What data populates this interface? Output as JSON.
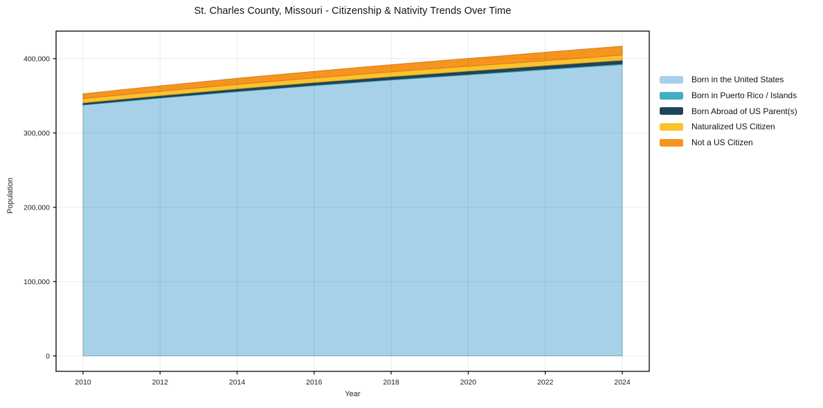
{
  "chart_data": {
    "type": "area",
    "stacked": true,
    "title": "St. Charles County, Missouri - Citizenship & Nativity Trends Over Time",
    "xlabel": "Year",
    "ylabel": "Population",
    "x": [
      2010,
      2011,
      2012,
      2013,
      2014,
      2015,
      2016,
      2017,
      2018,
      2019,
      2020,
      2021,
      2022,
      2023,
      2024
    ],
    "series": [
      {
        "name": "Born in the United States",
        "color": "#a6d1e8",
        "values": [
          337500,
          342200,
          346800,
          351200,
          355500,
          359600,
          363600,
          367400,
          371100,
          374700,
          378100,
          381500,
          385100,
          388600,
          392000
        ]
      },
      {
        "name": "Born in Puerto Rico / Islands",
        "color": "#41aec6",
        "values": [
          750,
          790,
          830,
          870,
          910,
          950,
          990,
          1030,
          1070,
          1110,
          1150,
          1190,
          1230,
          1260,
          1300
        ]
      },
      {
        "name": "Born Abroad of US Parent(s)",
        "color": "#1f4557",
        "values": [
          2300,
          2470,
          2640,
          2800,
          2970,
          3130,
          3300,
          3460,
          3630,
          3790,
          3960,
          4120,
          4290,
          4450,
          4600
        ]
      },
      {
        "name": "Naturalized US Citizen",
        "color": "#fcc22d",
        "values": [
          5600,
          5690,
          5780,
          5870,
          5960,
          6050,
          6140,
          6230,
          6320,
          6410,
          6500,
          6590,
          6680,
          6770,
          6850
        ]
      },
      {
        "name": "Not a US Citizen",
        "color": "#f7941f",
        "values": [
          6500,
          6900,
          7290,
          7680,
          8070,
          8460,
          8850,
          9240,
          9630,
          10020,
          10410,
          10800,
          11200,
          11600,
          12000
        ]
      }
    ],
    "xticks": [
      2010,
      2012,
      2014,
      2016,
      2018,
      2020,
      2022,
      2024
    ],
    "xtick_labels": [
      "2010",
      "2012",
      "2014",
      "2016",
      "2018",
      "2020",
      "2022",
      "2024"
    ],
    "yticks": [
      0,
      100000,
      200000,
      300000,
      400000
    ],
    "ytick_labels": [
      "0",
      "100,000",
      "200,000",
      "300,000",
      "400,000"
    ],
    "xlim": [
      2009.3,
      2024.7
    ],
    "ylim": [
      -20800,
      437000
    ],
    "grid": true,
    "legend_position": "right-outside",
    "colors": {
      "spine": "#000000",
      "grid": "rgba(0,0,0,0.08)",
      "tick_text": "#1a1a1a"
    }
  }
}
